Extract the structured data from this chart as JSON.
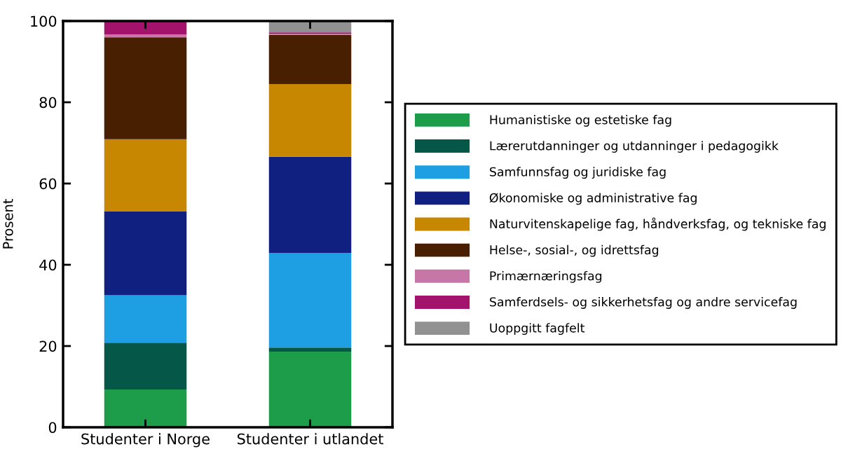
{
  "chart_data": {
    "type": "bar",
    "stacked": true,
    "ylabel": "Prosent",
    "categories": [
      "Studenter i Norge",
      "Studenter i utlandet"
    ],
    "ylim": [
      0,
      100
    ],
    "yticks": [
      0,
      20,
      40,
      60,
      80,
      100
    ],
    "grid": false,
    "legend": "right",
    "series": [
      {
        "name": "Humanistiske og estetiske fag",
        "color": "#1d9c4a",
        "values": [
          9.3,
          18.6
        ]
      },
      {
        "name": "Lærerutdanninger og utdanninger i pedagogikk",
        "color": "#055748",
        "values": [
          11.5,
          1.0
        ]
      },
      {
        "name": "Samfunnsfag og juridiske fag",
        "color": "#1e9fe3",
        "values": [
          11.7,
          23.3
        ]
      },
      {
        "name": "Økonomiske og administrative fag",
        "color": "#0f2080",
        "values": [
          20.7,
          23.7
        ]
      },
      {
        "name": "Naturvitenskapelige fag, håndverksfag, og tekniske fag",
        "color": "#c88700",
        "values": [
          17.7,
          17.9
        ]
      },
      {
        "name": "Helse-, sosial-, og idrettsfag",
        "color": "#481f01",
        "values": [
          25.1,
          12.1
        ]
      },
      {
        "name": "Primærnæringsfag",
        "color": "#c776a8",
        "values": [
          0.7,
          0.3
        ]
      },
      {
        "name": "Samferdsels- og sikkerhetsfag og andre servicefag",
        "color": "#a4136b",
        "values": [
          3.3,
          0.3
        ]
      },
      {
        "name": "Uoppgitt fagfelt",
        "color": "#919191",
        "values": [
          0,
          2.8
        ]
      }
    ]
  }
}
